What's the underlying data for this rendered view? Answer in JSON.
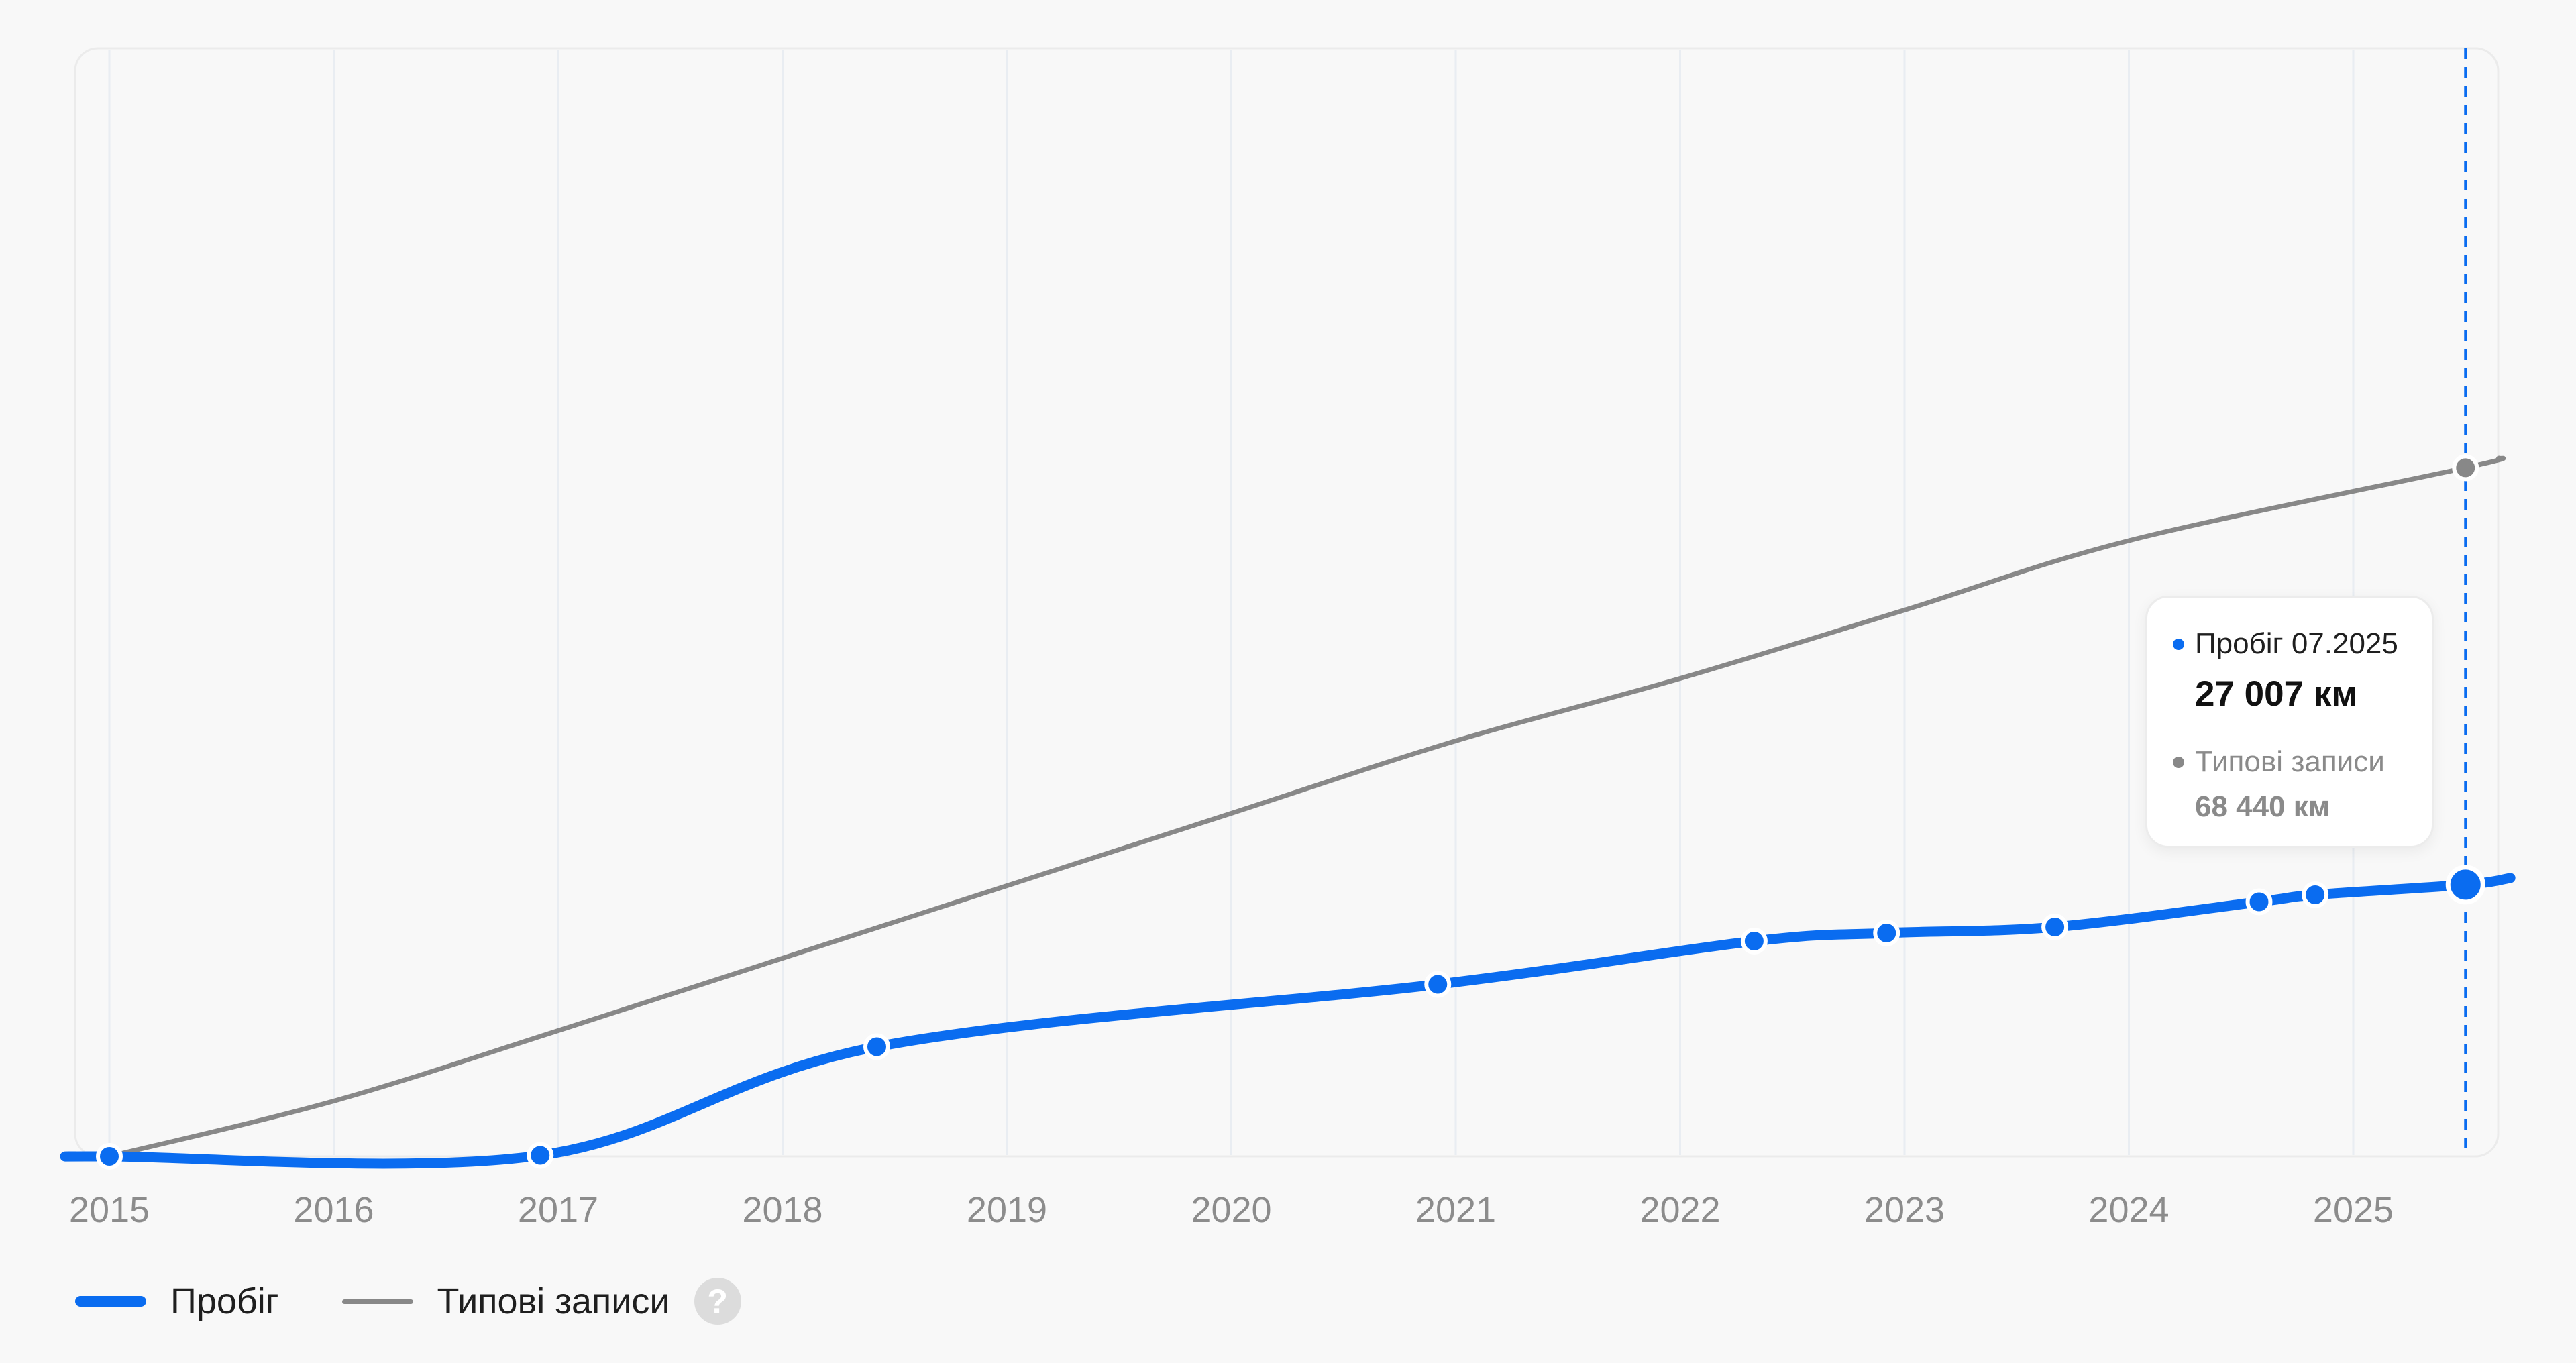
{
  "chart_data": {
    "type": "line",
    "x_axis": {
      "tick_labels": [
        "2015",
        "2016",
        "2017",
        "2018",
        "2019",
        "2020",
        "2021",
        "2022",
        "2023",
        "2024",
        "2025"
      ],
      "range": [
        2015.0,
        2025.7
      ]
    },
    "y_axis": {
      "unit": "км",
      "range": [
        0,
        110000
      ],
      "tick_labels_visible": false
    },
    "grid": "vertical",
    "series": [
      {
        "name": "Пробіг",
        "color": "#0a6cf0",
        "points": [
          {
            "x": 2015.0,
            "y": 0
          },
          {
            "x": 2016.92,
            "y": 100
          },
          {
            "x": 2018.42,
            "y": 10900
          },
          {
            "x": 2020.92,
            "y": 17100
          },
          {
            "x": 2022.33,
            "y": 21400
          },
          {
            "x": 2022.92,
            "y": 22200
          },
          {
            "x": 2023.67,
            "y": 22800
          },
          {
            "x": 2024.58,
            "y": 25300
          },
          {
            "x": 2024.83,
            "y": 26000
          },
          {
            "x": 2025.5,
            "y": 27007
          }
        ]
      },
      {
        "name": "Типові записи",
        "color": "#888888",
        "points": [
          {
            "x": 2015.0,
            "y": 0
          },
          {
            "x": 2016.0,
            "y": 5500
          },
          {
            "x": 2017.0,
            "y": 12500
          },
          {
            "x": 2018.0,
            "y": 19700
          },
          {
            "x": 2019.0,
            "y": 26900
          },
          {
            "x": 2020.0,
            "y": 34100
          },
          {
            "x": 2021.0,
            "y": 41300
          },
          {
            "x": 2022.0,
            "y": 47500
          },
          {
            "x": 2023.0,
            "y": 54300
          },
          {
            "x": 2024.0,
            "y": 61200
          },
          {
            "x": 2025.5,
            "y": 68440
          },
          {
            "x": 2025.65,
            "y": 69400
          }
        ]
      }
    ],
    "cursor": {
      "x": 2025.5,
      "label": "07.2025"
    },
    "tooltip": {
      "series_1_label": "Пробіг 07.2025",
      "series_1_value": "27 007 км",
      "series_2_label": "Типові записи",
      "series_2_value": "68 440 км"
    },
    "legend": {
      "position": "bottom-left",
      "items": [
        {
          "label": "Пробіг",
          "color": "#0a6cf0"
        },
        {
          "label": "Типові записи",
          "color": "#888888"
        }
      ],
      "help": "?"
    }
  }
}
